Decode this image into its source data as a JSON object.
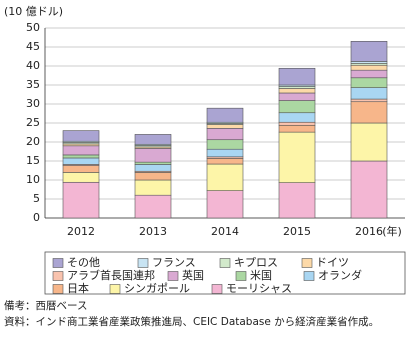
{
  "chart_data": {
    "type": "stacked_bar",
    "unit_label": "(10 億ドル)",
    "x_unit": "(年)",
    "categories": [
      "2012",
      "2013",
      "2014",
      "2015",
      "2016"
    ],
    "ylim": [
      0,
      50
    ],
    "yticks": [
      0,
      5,
      10,
      15,
      20,
      25,
      30,
      35,
      40,
      45,
      50
    ],
    "grid": true,
    "series": [
      {
        "name": "モーリシャス",
        "color": "#f3b6d3",
        "values": [
          9.4,
          6.0,
          7.2,
          9.3,
          15.0
        ]
      },
      {
        "name": "シンガポール",
        "color": "#fdf5a8",
        "values": [
          2.6,
          4.0,
          7.0,
          13.3,
          10.0
        ]
      },
      {
        "name": "日本",
        "color": "#f7b68a",
        "values": [
          1.8,
          2.0,
          1.5,
          1.8,
          5.6
        ]
      },
      {
        "name": "アラブ首長国連邦",
        "color": "#f9c3ae",
        "values": [
          0.3,
          0.3,
          0.4,
          0.8,
          0.7
        ]
      },
      {
        "name": "オランダ",
        "color": "#a9d6f2",
        "values": [
          1.7,
          1.8,
          2.0,
          2.5,
          3.0
        ]
      },
      {
        "name": "米国",
        "color": "#abd7a2",
        "values": [
          0.8,
          0.6,
          2.5,
          3.2,
          2.6
        ]
      },
      {
        "name": "英国",
        "color": "#d9a9d2",
        "values": [
          2.4,
          3.6,
          3.0,
          2.0,
          2.0
        ]
      },
      {
        "name": "ドイツ",
        "color": "#fcd9a8",
        "values": [
          0.5,
          0.4,
          1.0,
          1.2,
          1.3
        ]
      },
      {
        "name": "キプロス",
        "color": "#d2eacb",
        "values": [
          0.4,
          0.4,
          0.3,
          0.5,
          0.5
        ]
      },
      {
        "name": "フランス",
        "color": "#c8e4f3",
        "values": [
          0.3,
          0.3,
          0.3,
          0.4,
          0.5
        ]
      },
      {
        "name": "その他",
        "color": "#aaa4d2",
        "values": [
          2.8,
          2.6,
          3.7,
          4.4,
          5.3
        ]
      }
    ]
  },
  "notes": [
    "備考：西暦ベース",
    "資料：インド商工業省産業政策推進局、CEIC Database から経済産業省作成。"
  ]
}
